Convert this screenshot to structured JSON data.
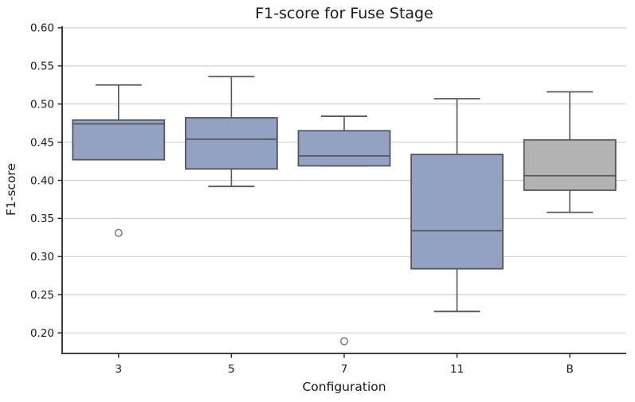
{
  "chart_data": {
    "type": "boxplot",
    "title": "F1-score for Fuse Stage",
    "xlabel": "Configuration",
    "ylabel": "F1-score",
    "ylim": [
      0.173,
      0.602
    ],
    "grid": "horizontal",
    "legend": "none",
    "yticks": [
      {
        "value": 0.2,
        "label": "0.20"
      },
      {
        "value": 0.25,
        "label": "0.25"
      },
      {
        "value": 0.3,
        "label": "0.30"
      },
      {
        "value": 0.35,
        "label": "0.35"
      },
      {
        "value": 0.4,
        "label": "0.40"
      },
      {
        "value": 0.45,
        "label": "0.45"
      },
      {
        "value": 0.5,
        "label": "0.50"
      },
      {
        "value": 0.55,
        "label": "0.55"
      },
      {
        "value": 0.6,
        "label": "0.60"
      }
    ],
    "categories": [
      "3",
      "5",
      "7",
      "11",
      "B"
    ],
    "boxes": [
      {
        "category": "3",
        "whislo": 0.427,
        "q1": 0.427,
        "med": 0.474,
        "q3": 0.479,
        "whishi": 0.525,
        "outliers": [
          0.331
        ],
        "fill": "#93a2c3"
      },
      {
        "category": "5",
        "whislo": 0.392,
        "q1": 0.415,
        "med": 0.454,
        "q3": 0.482,
        "whishi": 0.536,
        "outliers": [],
        "fill": "#93a2c3"
      },
      {
        "category": "7",
        "whislo": 0.419,
        "q1": 0.419,
        "med": 0.432,
        "q3": 0.465,
        "whishi": 0.484,
        "outliers": [
          0.189
        ],
        "fill": "#93a2c3"
      },
      {
        "category": "11",
        "whislo": 0.228,
        "q1": 0.284,
        "med": 0.334,
        "q3": 0.434,
        "whishi": 0.507,
        "outliers": [],
        "fill": "#93a2c3"
      },
      {
        "category": "B",
        "whislo": 0.358,
        "q1": 0.387,
        "med": 0.406,
        "q3": 0.453,
        "whishi": 0.516,
        "outliers": [],
        "fill": "#b3b3b3"
      }
    ],
    "colors": {
      "box_blue": "#93a2c3",
      "box_gray": "#b3b3b3",
      "edge": "#55595d",
      "outlier_edge": "#6e7175",
      "gridline": "#cbcbcb",
      "spine": "#262626",
      "text": "#1a1a1a",
      "background": "#ffffff"
    }
  }
}
